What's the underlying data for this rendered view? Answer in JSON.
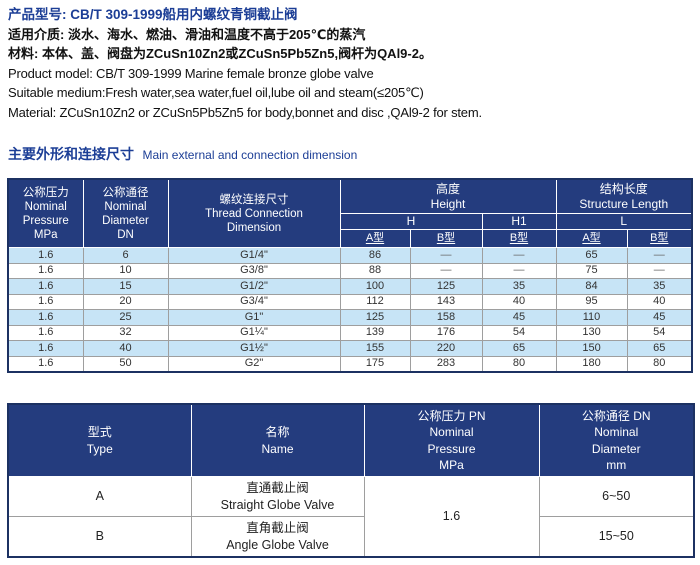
{
  "product_info": {
    "cn_model": "产品型号: CB/T 309-1999船用内螺纹青铜截止阀",
    "cn_medium": "适用介质: 淡水、海水、燃油、滑油和温度不高于205℃的蒸汽",
    "cn_material": "材料: 本体、盖、阀盘为ZCuSn10Zn2或ZCuSn5Pb5Zn5,阀杆为QAl9-2。",
    "en_model": "Product model: CB/T 309-1999 Marine female bronze globe valve",
    "en_medium": "Suitable medium:Fresh water,sea water,fuel oil,lube oil and steam(≤205℃)",
    "en_material": "Material: ZCuSn10Zn2 or ZCuSn5Pb5Zn5 for body,bonnet and disc ,QAl9-2 for stem."
  },
  "section_title": {
    "cn": "主要外形和连接尺寸",
    "en": "Main external and connection  dimension"
  },
  "dimension_table": {
    "col_pressure": "公称压力\nNominal\nPressure\nMPa",
    "col_diameter": "公称通径\nNominal\nDiameter\nDN",
    "col_thread": "螺纹连接尺寸\nThread Connection\nDimension",
    "group_height": "高度\nHeight",
    "group_length": "结构长度\nStructure Length",
    "sub_h": "H",
    "sub_h1": "H1",
    "sub_l": "L",
    "variant_labels": [
      "A型",
      "B型",
      "B型",
      "A型",
      "B型"
    ],
    "rows": [
      [
        "1.6",
        "6",
        "G1/4\"",
        "86",
        "—",
        "—",
        "65",
        "—"
      ],
      [
        "1.6",
        "10",
        "G3/8\"",
        "88",
        "—",
        "—",
        "75",
        "—"
      ],
      [
        "1.6",
        "15",
        "G1/2\"",
        "100",
        "125",
        "35",
        "84",
        "35"
      ],
      [
        "1.6",
        "20",
        "G3/4\"",
        "112",
        "143",
        "40",
        "95",
        "40"
      ],
      [
        "1.6",
        "25",
        "G1\"",
        "125",
        "158",
        "45",
        "110",
        "45"
      ],
      [
        "1.6",
        "32",
        "G1¼\"",
        "139",
        "176",
        "54",
        "130",
        "54"
      ],
      [
        "1.6",
        "40",
        "G1½\"",
        "155",
        "220",
        "65",
        "150",
        "65"
      ],
      [
        "1.6",
        "50",
        "G2\"",
        "175",
        "283",
        "80",
        "180",
        "80"
      ]
    ]
  },
  "type_table": {
    "col_type": "型式\nType",
    "col_name": "名称\nName",
    "col_pn": "公称压力 PN\nNominal\nPressure\nMPa",
    "col_dn": "公称通径 DN\nNominal\nDiameter\nmm",
    "pn_value": "1.6",
    "rows": [
      {
        "type": "A",
        "name": "直通截止阀\nStraight Globe Valve",
        "dn": "6~50"
      },
      {
        "type": "B",
        "name": "直角截止阀\nAngle Globe Valve",
        "dn": "15~50"
      }
    ]
  },
  "colors": {
    "header_bg": "#243c7e",
    "row_alt_bg": "#c7e4f6",
    "accent_text": "#1c3e96",
    "table_border": "#1c3162",
    "grid_line": "#9e9e9e",
    "body_text": "#333333"
  }
}
